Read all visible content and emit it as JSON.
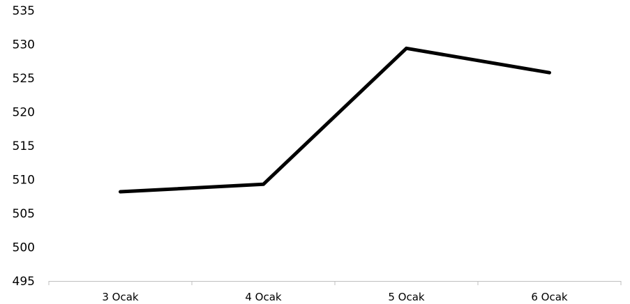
{
  "chart_data": {
    "type": "line",
    "title": "",
    "xlabel": "",
    "ylabel": "",
    "categories": [
      "3 Ocak",
      "4 Ocak",
      "5 Ocak",
      "6 Ocak"
    ],
    "series": [
      {
        "values": [
          508.2,
          509.3,
          529.4,
          525.8
        ],
        "color": "#000000"
      }
    ],
    "ylim": [
      495,
      535
    ],
    "yticks": [
      495,
      500,
      505,
      510,
      515,
      520,
      525,
      530,
      535
    ],
    "grid": false,
    "legend": "none"
  }
}
